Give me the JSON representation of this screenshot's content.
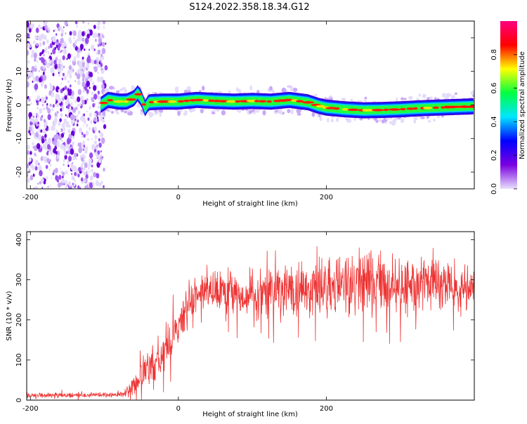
{
  "title": "S124.2022.358.18.34.G12",
  "chart_data": [
    {
      "type": "heatmap",
      "xlabel": "Height of straight line (km)",
      "ylabel": "Frequency (Hz)",
      "xlim": [
        -205,
        400
      ],
      "ylim": [
        -25,
        25
      ],
      "x_ticks": [
        -200,
        0,
        200
      ],
      "y_ticks": [
        -20,
        -10,
        0,
        10,
        20
      ],
      "colorbar": {
        "label": "Normalized spectral amplitude",
        "range": [
          0,
          1
        ],
        "ticks": [
          0.0,
          0.2,
          0.4,
          0.6,
          0.8
        ],
        "colors": [
          "#e8e0fb",
          "#7a00e0",
          "#0000ff",
          "#00e5ff",
          "#00ff40",
          "#ffff00",
          "#ff0000",
          "#ff0080"
        ]
      },
      "trace": {
        "x": [
          -105,
          -95,
          -80,
          -70,
          -60,
          -55,
          -50,
          -45,
          -40,
          -20,
          0,
          25,
          50,
          75,
          100,
          125,
          150,
          175,
          190,
          200,
          225,
          250,
          275,
          300,
          325,
          350,
          375,
          400
        ],
        "y": [
          0,
          1.5,
          1,
          1,
          2,
          3.5,
          2,
          -1,
          0.8,
          1,
          1,
          1.5,
          1.2,
          1,
          1.2,
          1,
          1.5,
          0.8,
          -0.3,
          -0.8,
          -1.3,
          -1.6,
          -1.5,
          -1.3,
          -1,
          -0.8,
          -0.6,
          -0.4
        ]
      },
      "noise_region": [
        -205,
        -100
      ]
    },
    {
      "type": "line",
      "xlabel": "Height of straight line (km)",
      "ylabel": "SNR (10 * v/v)",
      "xlim": [
        -205,
        400
      ],
      "ylim": [
        0,
        420
      ],
      "x_ticks": [
        -200,
        0,
        200
      ],
      "y_ticks": [
        0,
        100,
        200,
        300,
        400
      ],
      "color": "#ee3333",
      "envelope": {
        "x": [
          -205,
          -150,
          -100,
          -75,
          -65,
          -50,
          -40,
          -20,
          -10,
          0,
          10,
          20,
          30,
          40,
          60,
          100,
          150,
          200,
          250,
          300,
          350,
          400
        ],
        "mean": [
          12,
          12,
          13,
          15,
          25,
          60,
          85,
          115,
          150,
          180,
          225,
          250,
          265,
          270,
          268,
          262,
          270,
          280,
          290,
          290,
          285,
          275
        ],
        "amp": [
          5,
          5,
          5,
          6,
          15,
          30,
          40,
          45,
          45,
          40,
          40,
          35,
          35,
          40,
          42,
          45,
          55,
          65,
          70,
          60,
          50,
          40
        ]
      }
    }
  ]
}
